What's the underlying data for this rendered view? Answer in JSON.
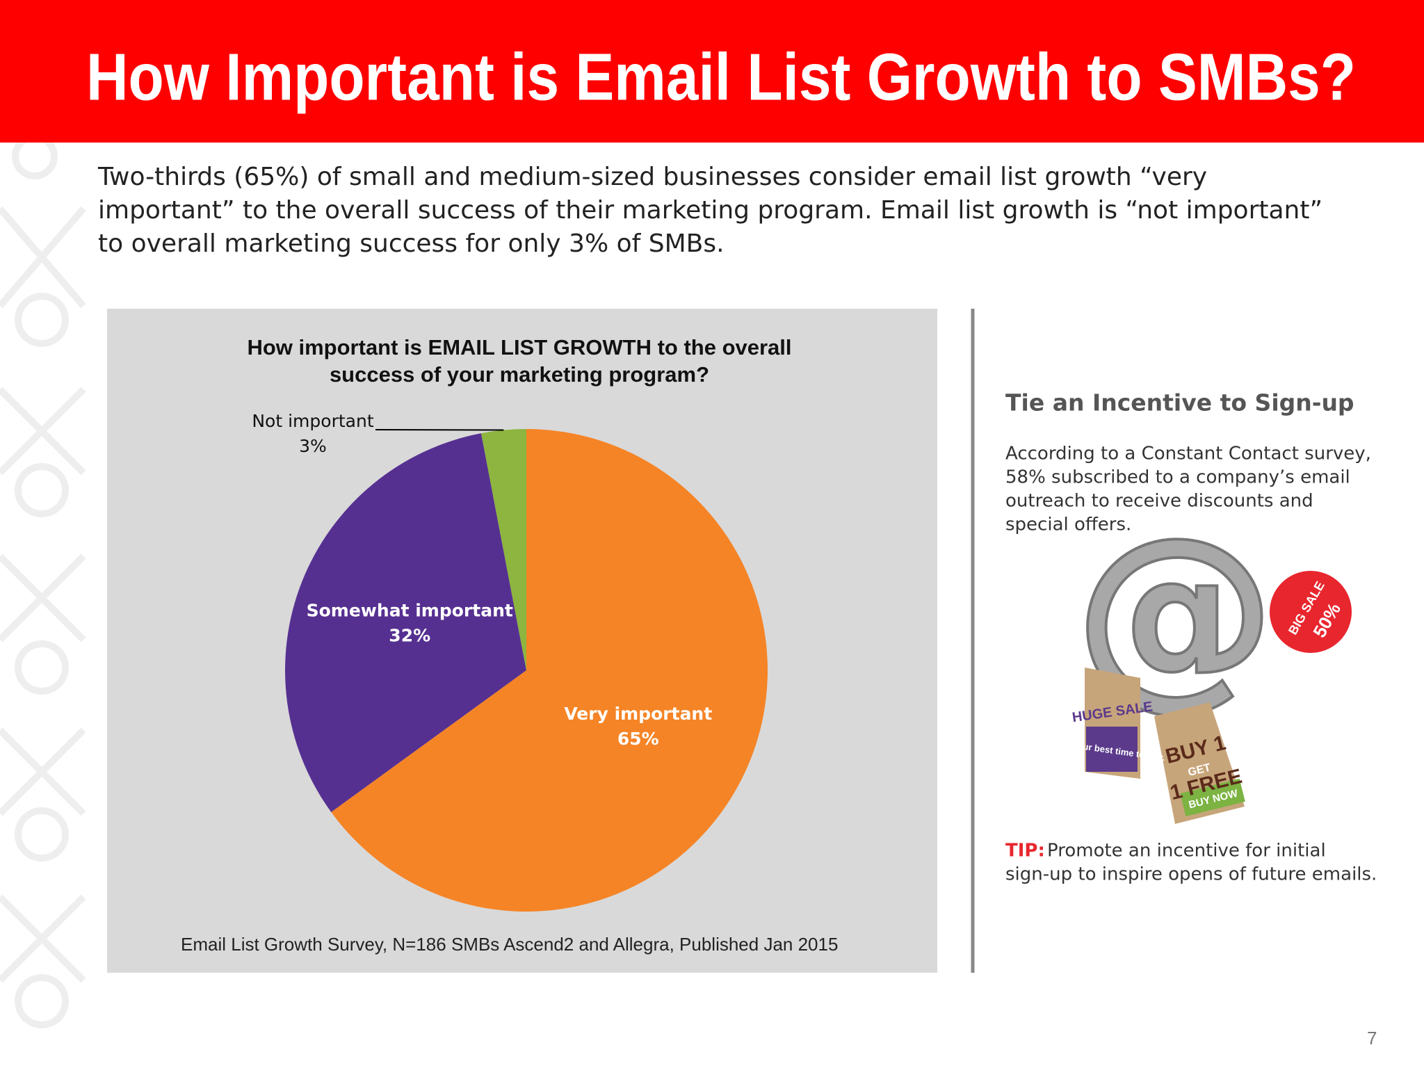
{
  "slide": {
    "title": "How Important is Email List Growth to SMBs?",
    "body_lines": [
      "Two-thirds (65%) of small and medium-sized businesses consider email list growth “very",
      "important” to the overall success of their marketing program. Email list growth is “not important”",
      "to overall marketing success for only 3% of SMBs."
    ],
    "source": "Email List Growth Survey, N=186 SMBs Ascend2 and Allegra, Published Jan 2015",
    "sidebar": {
      "heading": "Tie an Incentive to Sign-up",
      "lines": [
        "According to a Constant Contact survey,",
        "58% subscribed to a company’s email",
        "outreach to receive discounts and",
        "special offers."
      ],
      "image_texts": [
        "HUGE SALE",
        "it's your best time to buy.",
        "BUY 1",
        "GET",
        "1 FREE",
        "BUY NOW",
        "BIG SALE",
        "50%"
      ],
      "tip_label": "TIP:",
      "tip_lines": [
        "Promote an incentive for initial",
        "sign-up to inspire opens of future emails."
      ]
    },
    "page_number": "7"
  },
  "chart_data": {
    "type": "pie",
    "title": "How important is EMAIL LIST GROWTH to the overall success of your marketing program?",
    "categories": [
      "Very important",
      "Somewhat important",
      "Not important"
    ],
    "values": [
      65,
      32,
      3
    ],
    "value_labels": [
      "65%",
      "32%",
      "3%"
    ],
    "colors": [
      "#f58426",
      "#563091",
      "#8db53f"
    ]
  }
}
